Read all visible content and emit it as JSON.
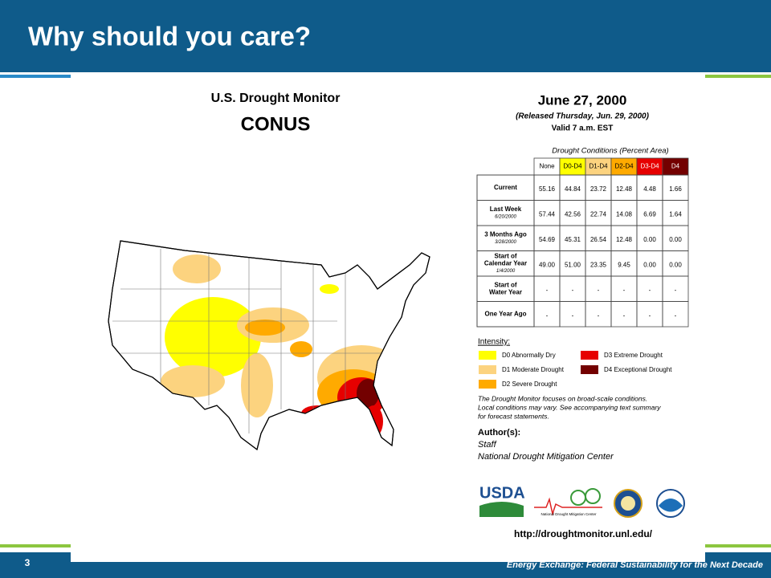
{
  "slide": {
    "title": "Why should you care?",
    "page_number": "3",
    "footer": "Energy Exchange: Federal Sustainability for the Next Decade"
  },
  "drought_monitor": {
    "title": "U.S. Drought Monitor",
    "region": "CONUS",
    "date": "June 27, 2000",
    "released": "(Released Thursday, Jun. 29, 2000)",
    "valid": "Valid 7 a.m. EST",
    "table": {
      "caption": "Drought Conditions (Percent Area)",
      "columns": [
        {
          "label": "None",
          "color": "#ffffff",
          "text_color": "#000000"
        },
        {
          "label": "D0-D4",
          "color": "#ffff00",
          "text_color": "#000000"
        },
        {
          "label": "D1-D4",
          "color": "#fcd37f",
          "text_color": "#000000"
        },
        {
          "label": "D2-D4",
          "color": "#ffaa00",
          "text_color": "#000000"
        },
        {
          "label": "D3-D4",
          "color": "#e60000",
          "text_color": "#ffffff"
        },
        {
          "label": "D4",
          "color": "#730000",
          "text_color": "#ffffff"
        }
      ],
      "rows": [
        {
          "label": [
            "Current"
          ],
          "values": [
            "55.16",
            "44.84",
            "23.72",
            "12.48",
            "4.48",
            "1.66"
          ]
        },
        {
          "label": [
            "Last Week"
          ],
          "date": "6/20/2000",
          "values": [
            "57.44",
            "42.56",
            "22.74",
            "14.08",
            "6.69",
            "1.64"
          ]
        },
        {
          "label": [
            "3 Months Ago"
          ],
          "date": "3/28/2000",
          "values": [
            "54.69",
            "45.31",
            "26.54",
            "12.48",
            "0.00",
            "0.00"
          ]
        },
        {
          "label": [
            "Start of",
            "Calendar Year"
          ],
          "date": "1/4/2000",
          "values": [
            "49.00",
            "51.00",
            "23.35",
            "9.45",
            "0.00",
            "0.00"
          ]
        },
        {
          "label": [
            "Start of",
            "Water Year"
          ],
          "values": [
            "-",
            "-",
            "-",
            "-",
            "-",
            "-"
          ]
        },
        {
          "label": [
            "One Year Ago"
          ],
          "values": [
            "-",
            "-",
            "-",
            "-",
            "-",
            "-"
          ]
        }
      ]
    },
    "intensity": {
      "heading": "Intensity:",
      "items": [
        {
          "label": "D0 Abnormally Dry",
          "color": "#ffff00"
        },
        {
          "label": "D1 Moderate Drought",
          "color": "#fcd37f"
        },
        {
          "label": "D2 Severe Drought",
          "color": "#ffaa00"
        },
        {
          "label": "D3 Extreme Drought",
          "color": "#e60000"
        },
        {
          "label": "D4 Exceptional Drought",
          "color": "#730000"
        }
      ]
    },
    "note": [
      "The Drought Monitor focuses on broad-scale conditions.",
      "Local conditions may vary. See accompanying text summary",
      "for forecast statements."
    ],
    "author_heading": "Author(s):",
    "authors": [
      "Staff",
      "National Drought Mitigation Center"
    ],
    "logos": {
      "usda": "USDA",
      "ndmc": "National Drought Mitigation Center"
    },
    "url": "http://droughtmonitor.unl.edu/"
  }
}
